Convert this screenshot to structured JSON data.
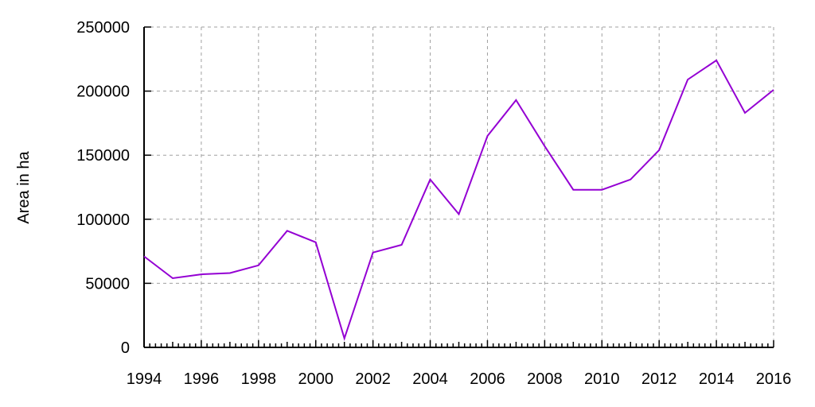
{
  "chart_data": {
    "type": "line",
    "title": "",
    "xlabel": "",
    "ylabel": "Area in ha",
    "xlim": [
      1994,
      2016
    ],
    "ylim": [
      0,
      250000
    ],
    "x_ticks": [
      1994,
      1996,
      1998,
      2000,
      2002,
      2004,
      2006,
      2008,
      2010,
      2012,
      2014,
      2016
    ],
    "y_ticks": [
      0,
      50000,
      100000,
      150000,
      200000,
      250000
    ],
    "grid": true,
    "colors": {
      "line": "#9400D3",
      "grid": "#a0a0a0",
      "axis": "#000000"
    },
    "series": [
      {
        "x": [
          1994,
          1995,
          1996,
          1997,
          1998,
          1999,
          2000,
          2001,
          2002,
          2003,
          2004,
          2005,
          2006,
          2007,
          2008,
          2009,
          2010,
          2011,
          2012,
          2013,
          2014,
          2015,
          2016
        ],
        "values": [
          71000,
          54000,
          57000,
          58000,
          64000,
          91000,
          82000,
          7000,
          74000,
          80000,
          131000,
          104000,
          165000,
          193000,
          157000,
          123000,
          123000,
          131000,
          154000,
          209000,
          224000,
          183000,
          201000
        ]
      }
    ]
  }
}
